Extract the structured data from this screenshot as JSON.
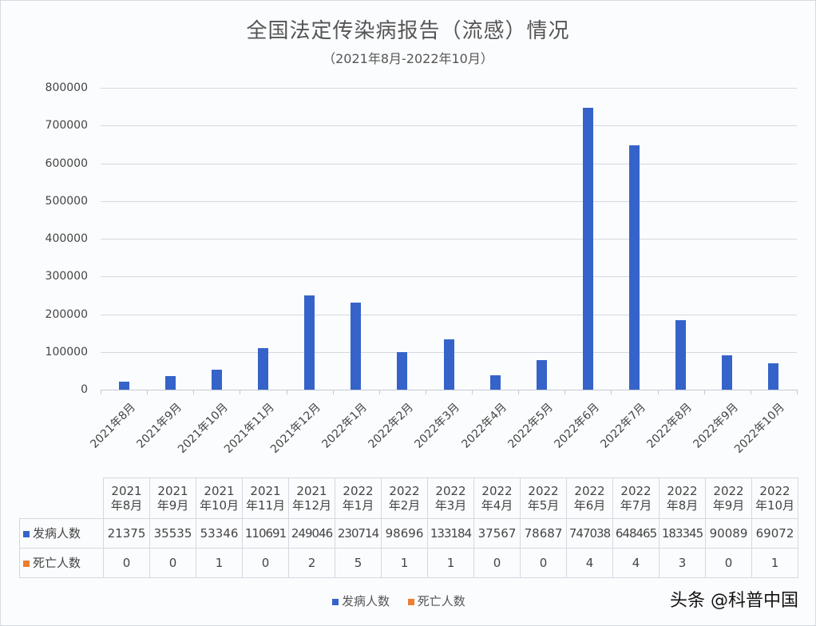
{
  "title": "全国法定传染病报告（流感）情况",
  "subtitle": "（2021年8月-2022年10月）",
  "legend": [
    {
      "label": "发病人数",
      "color": "#3563c9"
    },
    {
      "label": "死亡人数",
      "color": "#ed7d31"
    }
  ],
  "watermark": "头条 @科普中国",
  "yticks": [
    "800000",
    "700000",
    "600000",
    "500000",
    "400000",
    "300000",
    "200000",
    "100000",
    "0"
  ],
  "table": {
    "headers": [
      {
        "y": "2021",
        "m": "年8月"
      },
      {
        "y": "2021",
        "m": "年9月"
      },
      {
        "y": "2021",
        "m": "年10月"
      },
      {
        "y": "2021",
        "m": "年11月"
      },
      {
        "y": "2021",
        "m": "年12月"
      },
      {
        "y": "2022",
        "m": "年1月"
      },
      {
        "y": "2022",
        "m": "年2月"
      },
      {
        "y": "2022",
        "m": "年3月"
      },
      {
        "y": "2022",
        "m": "年4月"
      },
      {
        "y": "2022",
        "m": "年5月"
      },
      {
        "y": "2022",
        "m": "年6月"
      },
      {
        "y": "2022",
        "m": "年7月"
      },
      {
        "y": "2022",
        "m": "年8月"
      },
      {
        "y": "2022",
        "m": "年9月"
      },
      {
        "y": "2022",
        "m": "年10月"
      }
    ],
    "rows": [
      {
        "label": "发病人数",
        "values": [
          "21375",
          "35535",
          "53346",
          "110691",
          "249046",
          "230714",
          "98696",
          "133184",
          "37567",
          "78687",
          "747038",
          "648465",
          "183345",
          "90089",
          "69072"
        ]
      },
      {
        "label": "死亡人数",
        "values": [
          "0",
          "0",
          "1",
          "0",
          "2",
          "5",
          "1",
          "1",
          "0",
          "0",
          "4",
          "4",
          "3",
          "0",
          "1"
        ]
      }
    ]
  },
  "chart_data": {
    "type": "bar",
    "title": "全国法定传染病报告（流感）情况",
    "subtitle": "（2021年8月-2022年10月）",
    "categories": [
      "2021年8月",
      "2021年9月",
      "2021年10月",
      "2021年11月",
      "2021年12月",
      "2022年1月",
      "2022年2月",
      "2022年3月",
      "2022年4月",
      "2022年5月",
      "2022年6月",
      "2022年7月",
      "2022年8月",
      "2022年9月",
      "2022年10月"
    ],
    "series": [
      {
        "name": "发病人数",
        "color": "#3563c9",
        "values": [
          21375,
          35535,
          53346,
          110691,
          249046,
          230714,
          98696,
          133184,
          37567,
          78687,
          747038,
          648465,
          183345,
          90089,
          69072
        ]
      },
      {
        "name": "死亡人数",
        "color": "#ed7d31",
        "values": [
          0,
          0,
          1,
          0,
          2,
          5,
          1,
          1,
          0,
          0,
          4,
          4,
          3,
          0,
          1
        ]
      }
    ],
    "xlabel": "",
    "ylabel": "",
    "ylim": [
      0,
      800000
    ],
    "yticks": [
      0,
      100000,
      200000,
      300000,
      400000,
      500000,
      600000,
      700000,
      800000
    ],
    "grid": true,
    "legend_position": "bottom",
    "data_table": true
  }
}
